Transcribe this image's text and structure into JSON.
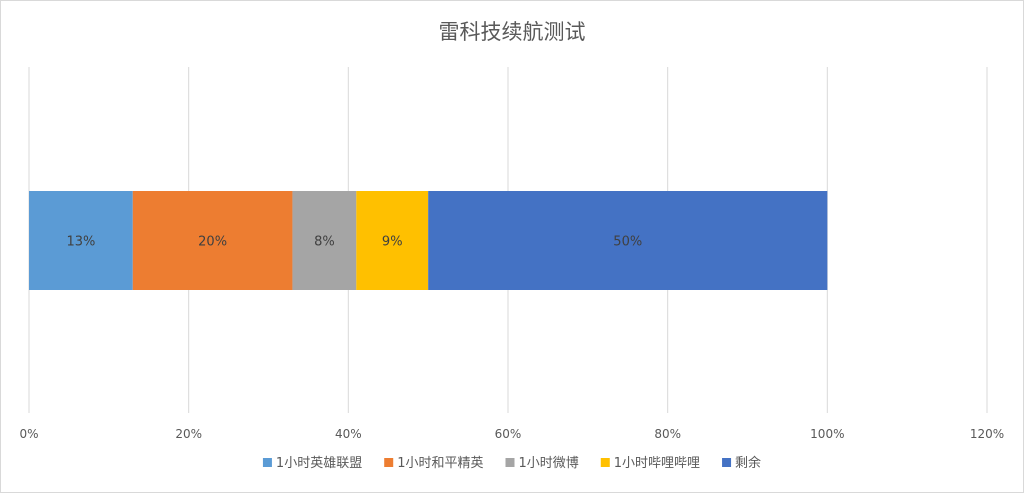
{
  "chart_data": {
    "type": "bar",
    "orientation": "horizontal",
    "stacked": true,
    "title": "雷科技续航测试",
    "categories": [
      ""
    ],
    "series": [
      {
        "name": "1小时英雄联盟",
        "values": [
          0.13
        ],
        "label": "13%",
        "color": "#5b9bd5"
      },
      {
        "name": "1小时和平精英",
        "values": [
          0.2
        ],
        "label": "20%",
        "color": "#ed7d31"
      },
      {
        "name": "1小时微博",
        "values": [
          0.08
        ],
        "label": "8%",
        "color": "#a5a5a5"
      },
      {
        "name": "1小时哔哩哔哩",
        "values": [
          0.09
        ],
        "label": "9%",
        "color": "#ffc000"
      },
      {
        "name": "剩余",
        "values": [
          0.5
        ],
        "label": "50%",
        "color": "#4472c4"
      }
    ],
    "xlim": [
      0,
      1.2
    ],
    "xticks": [
      {
        "value": 0,
        "label": "0%"
      },
      {
        "value": 0.2,
        "label": "20%"
      },
      {
        "value": 0.4,
        "label": "40%"
      },
      {
        "value": 0.6,
        "label": "60%"
      },
      {
        "value": 0.8,
        "label": "80%"
      },
      {
        "value": 1.0,
        "label": "100%"
      },
      {
        "value": 1.2,
        "label": "120%"
      }
    ],
    "grid": true,
    "legend_position": "bottom",
    "colors": {
      "grid": "#d9d9d9",
      "text": "#595959"
    }
  }
}
